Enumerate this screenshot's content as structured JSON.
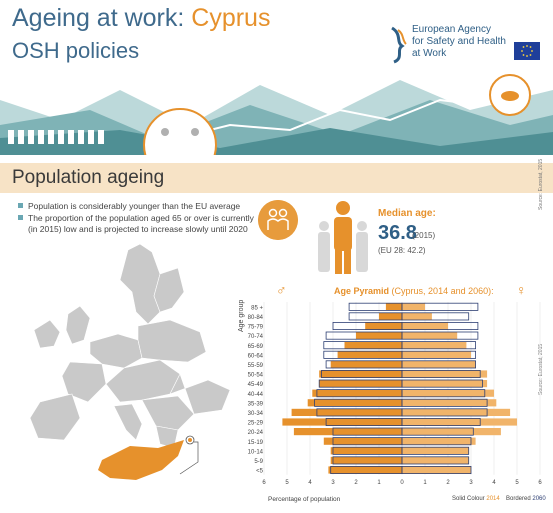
{
  "header": {
    "title_prefix": "Ageing at work: ",
    "country": "Cyprus",
    "subtitle": "OSH policies",
    "agency_line1": "European Agency",
    "agency_line2": "for Safety and Health",
    "agency_line3": "at Work"
  },
  "section": {
    "title": "Population ageing"
  },
  "bullets": [
    "Population is considerably younger than the EU average",
    "The proportion of the population aged 65 or over is currently",
    "(in 2015) low and is projected to increase slowly until 2020"
  ],
  "median": {
    "label": "Median age:",
    "value": "36.8",
    "year": "(2015)",
    "eu": "(EU 28: 42.2)",
    "source": "Source: Eurostat, 2015"
  },
  "pyramid": {
    "title": "Age Pyramid",
    "subtitle": "(Cyprus, 2014 and 2060):",
    "y_label": "Age group",
    "x_label": "Percentage of population",
    "legend_solid": "Solid Colour ",
    "legend_solid_year": "2014",
    "legend_bordered": "Bordered ",
    "legend_bordered_year": "2060",
    "source": "Source: Eurostat, 2015",
    "male_symbol": "♂",
    "female_symbol": "♀"
  },
  "colors": {
    "brand_blue": "#2f5f86",
    "accent_orange": "#e6912c",
    "light_orange": "#f1b46a",
    "section_bg": "#f7e3c6",
    "bordered_navy": "#2d3f73"
  },
  "chart_data": {
    "type": "bar",
    "orientation": "horizontal-pyramid",
    "categories": [
      "85 +",
      "80-84",
      "75-79",
      "70-74",
      "65-69",
      "60-64",
      "55-59",
      "50-54",
      "45-49",
      "40-44",
      "35-39",
      "30-34",
      "25-29",
      "20-24",
      "15-19",
      "10-14",
      "5-9",
      "<5"
    ],
    "series": [
      {
        "name": "2014",
        "side": "male",
        "values": [
          0.7,
          1.0,
          1.6,
          2.0,
          2.5,
          2.8,
          3.1,
          3.6,
          3.6,
          3.9,
          4.1,
          4.8,
          5.2,
          4.7,
          3.4,
          3.1,
          3.1,
          3.2
        ]
      },
      {
        "name": "2014",
        "side": "female",
        "values": [
          1.0,
          1.3,
          2.0,
          2.4,
          2.8,
          3.0,
          3.2,
          3.7,
          3.7,
          4.0,
          4.1,
          4.7,
          5.0,
          4.3,
          3.2,
          2.9,
          2.9,
          3.0
        ]
      },
      {
        "name": "2060",
        "side": "male",
        "values": [
          2.3,
          2.3,
          3.0,
          3.3,
          3.4,
          3.4,
          3.3,
          3.5,
          3.6,
          3.7,
          3.8,
          3.7,
          3.3,
          3.0,
          3.0,
          3.0,
          3.0,
          3.1
        ]
      },
      {
        "name": "2060",
        "side": "female",
        "values": [
          3.3,
          2.9,
          3.3,
          3.3,
          3.2,
          3.2,
          3.2,
          3.4,
          3.5,
          3.6,
          3.7,
          3.7,
          3.4,
          3.1,
          3.0,
          2.9,
          2.9,
          3.0
        ]
      }
    ],
    "x_ticks": [
      "6",
      "5",
      "4",
      "3",
      "2",
      "1",
      "0",
      "1",
      "2",
      "3",
      "4",
      "5",
      "6"
    ],
    "xlim": [
      -6,
      6
    ],
    "xlabel": "Percentage of population",
    "ylabel": "Age group",
    "grid": true
  }
}
